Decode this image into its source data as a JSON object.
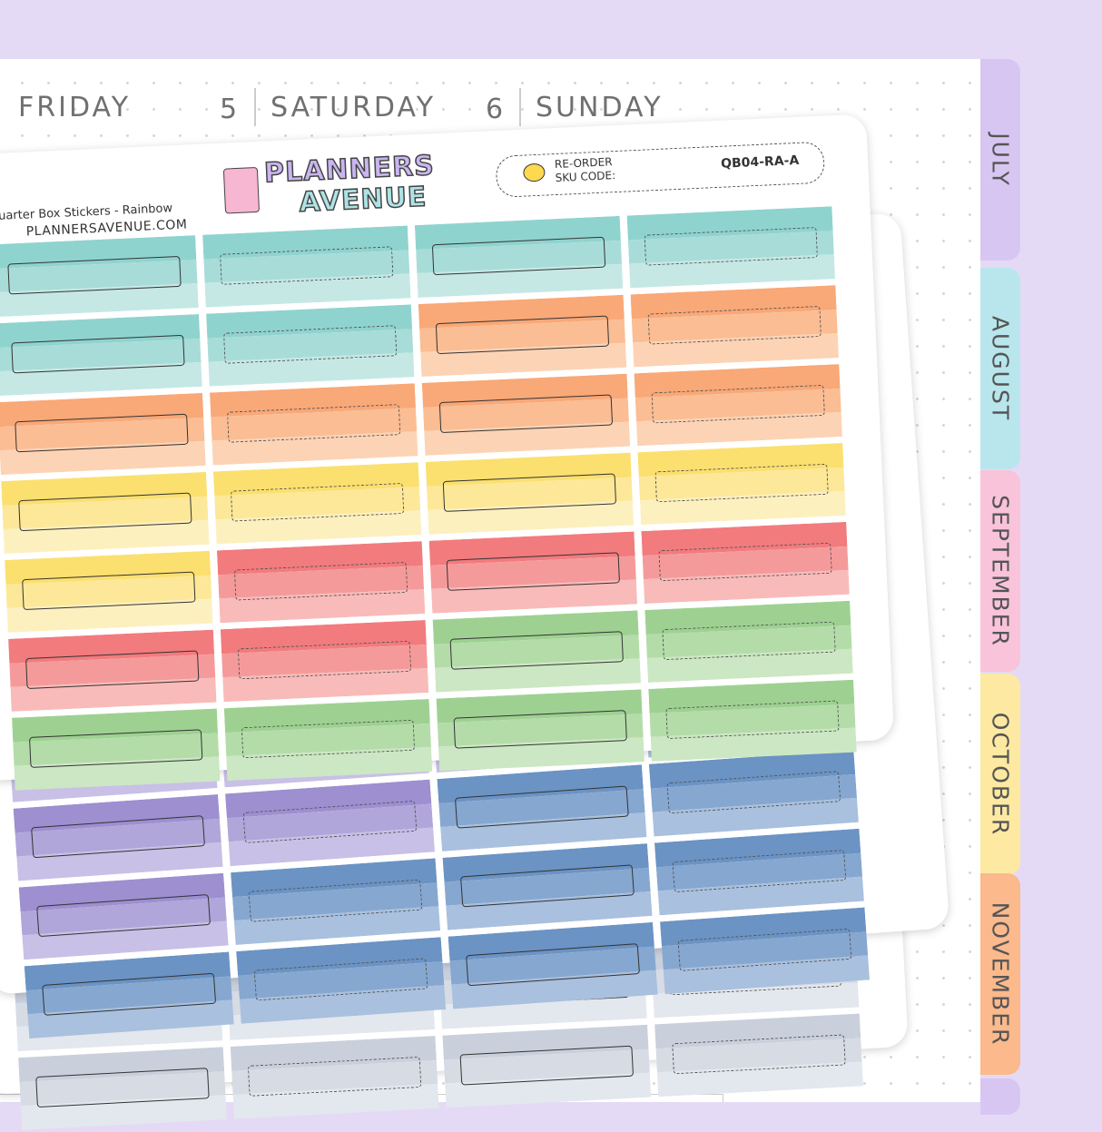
{
  "header": {
    "days": [
      {
        "label": "FRIDAY",
        "number": "5"
      },
      {
        "label": "SATURDAY",
        "number": "6"
      },
      {
        "label": "SUNDAY"
      }
    ]
  },
  "sheet": {
    "logo_line1": "PLANNERS",
    "logo_line2": "AVENUE",
    "product": "Quarter Box Stickers - Rainbow",
    "website": "PLANNERSAVENUE.COM",
    "reorder": "RE-ORDER",
    "sku_label": "SKU CODE:",
    "sku": "QB04-RA-A"
  },
  "tabs": [
    "JULY",
    "AUGUST",
    "SEPTEMBER",
    "OCTOBER",
    "NOVEMBER"
  ]
}
